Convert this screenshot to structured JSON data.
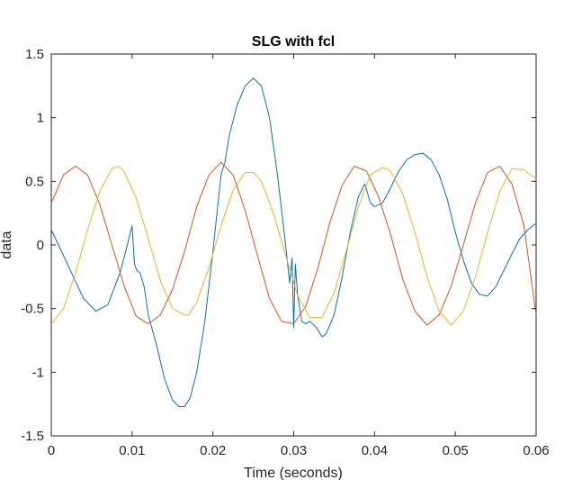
{
  "chart_data": {
    "type": "line",
    "title": "SLG with fcl",
    "xlabel": "Time (seconds)",
    "ylabel": "data",
    "xlim": [
      0,
      0.06
    ],
    "ylim": [
      -1.5,
      1.5
    ],
    "grid": false,
    "x_ticks": [
      0,
      0.01,
      0.02,
      0.03,
      0.04,
      0.05,
      0.06
    ],
    "x_tick_labels": [
      "0",
      "0.01",
      "0.02",
      "0.03",
      "0.04",
      "0.05",
      "0.06"
    ],
    "y_ticks": [
      -1.5,
      -1,
      -0.5,
      0,
      0.5,
      1,
      1.5
    ],
    "y_tick_labels": [
      "-1.5",
      "-1",
      "-0.5",
      "0",
      "0.5",
      "1",
      "1.5"
    ],
    "series": [
      {
        "color": "#0072BD",
        "x": [
          0,
          0.002,
          0.004,
          0.0055,
          0.007,
          0.0085,
          0.0095,
          0.0098,
          0.01,
          0.0103,
          0.0106,
          0.011,
          0.0115,
          0.012,
          0.013,
          0.014,
          0.015,
          0.0158,
          0.0165,
          0.0172,
          0.018,
          0.019,
          0.02,
          0.021,
          0.0215,
          0.022,
          0.023,
          0.024,
          0.025,
          0.026,
          0.027,
          0.028,
          0.029,
          0.0295,
          0.0298,
          0.03,
          0.0302,
          0.0305,
          0.031,
          0.0315,
          0.032,
          0.0328,
          0.0335,
          0.034,
          0.035,
          0.036,
          0.037,
          0.038,
          0.0388,
          0.0395,
          0.04,
          0.041,
          0.042,
          0.043,
          0.044,
          0.045,
          0.046,
          0.047,
          0.048,
          0.049,
          0.05,
          0.051,
          0.052,
          0.053,
          0.054,
          0.055,
          0.056,
          0.057,
          0.058,
          0.059,
          0.06
        ],
        "y": [
          0.12,
          -0.15,
          -0.42,
          -0.52,
          -0.47,
          -0.22,
          0.02,
          0.1,
          0.15,
          -0.15,
          -0.2,
          -0.22,
          -0.33,
          -0.55,
          -0.78,
          -1.05,
          -1.22,
          -1.27,
          -1.27,
          -1.2,
          -1.0,
          -0.6,
          -0.05,
          0.55,
          0.65,
          0.85,
          1.1,
          1.25,
          1.31,
          1.25,
          1.0,
          0.55,
          0.0,
          -0.3,
          -0.1,
          -0.65,
          -0.15,
          -0.4,
          -0.6,
          -0.62,
          -0.6,
          -0.65,
          -0.72,
          -0.7,
          -0.55,
          -0.25,
          0.1,
          0.38,
          0.48,
          0.33,
          0.3,
          0.33,
          0.45,
          0.58,
          0.67,
          0.71,
          0.72,
          0.67,
          0.55,
          0.36,
          0.1,
          -0.12,
          -0.3,
          -0.39,
          -0.4,
          -0.33,
          -0.2,
          -0.07,
          0.05,
          0.12,
          0.17
        ]
      },
      {
        "color": "#D95319",
        "x": [
          0,
          0.0015,
          0.003,
          0.0045,
          0.006,
          0.0075,
          0.009,
          0.0105,
          0.012,
          0.0135,
          0.015,
          0.0165,
          0.018,
          0.0195,
          0.021,
          0.0225,
          0.024,
          0.0255,
          0.027,
          0.0285,
          0.03,
          0.0315,
          0.033,
          0.0345,
          0.036,
          0.0375,
          0.039,
          0.0405,
          0.042,
          0.0435,
          0.045,
          0.0465,
          0.048,
          0.0495,
          0.051,
          0.0525,
          0.054,
          0.0555,
          0.057,
          0.0585,
          0.06
        ],
        "y": [
          0.33,
          0.55,
          0.62,
          0.55,
          0.32,
          0.0,
          -0.32,
          -0.56,
          -0.62,
          -0.55,
          -0.35,
          -0.05,
          0.3,
          0.55,
          0.65,
          0.55,
          0.27,
          -0.08,
          -0.42,
          -0.6,
          -0.62,
          -0.48,
          -0.18,
          0.18,
          0.47,
          0.62,
          0.58,
          0.38,
          0.08,
          -0.27,
          -0.52,
          -0.63,
          -0.55,
          -0.32,
          0.0,
          0.33,
          0.57,
          0.62,
          0.48,
          0.15,
          -0.55
        ]
      },
      {
        "color": "#EDB120",
        "x": [
          0,
          0.0015,
          0.003,
          0.0045,
          0.006,
          0.0075,
          0.0083,
          0.009,
          0.0105,
          0.012,
          0.0135,
          0.015,
          0.0165,
          0.017,
          0.018,
          0.0195,
          0.021,
          0.0225,
          0.024,
          0.025,
          0.026,
          0.0275,
          0.029,
          0.0305,
          0.032,
          0.0335,
          0.035,
          0.0365,
          0.038,
          0.0395,
          0.041,
          0.042,
          0.0435,
          0.045,
          0.0465,
          0.048,
          0.0495,
          0.051,
          0.0525,
          0.054,
          0.0555,
          0.057,
          0.0585,
          0.06
        ],
        "y": [
          -0.62,
          -0.5,
          -0.22,
          0.12,
          0.42,
          0.6,
          0.62,
          0.58,
          0.37,
          0.05,
          -0.28,
          -0.5,
          -0.55,
          -0.55,
          -0.45,
          -0.18,
          0.15,
          0.43,
          0.57,
          0.57,
          0.5,
          0.25,
          -0.08,
          -0.4,
          -0.57,
          -0.57,
          -0.38,
          -0.05,
          0.3,
          0.55,
          0.61,
          0.58,
          0.4,
          0.1,
          -0.25,
          -0.52,
          -0.63,
          -0.52,
          -0.25,
          0.1,
          0.42,
          0.6,
          0.59,
          0.52
        ]
      }
    ]
  }
}
